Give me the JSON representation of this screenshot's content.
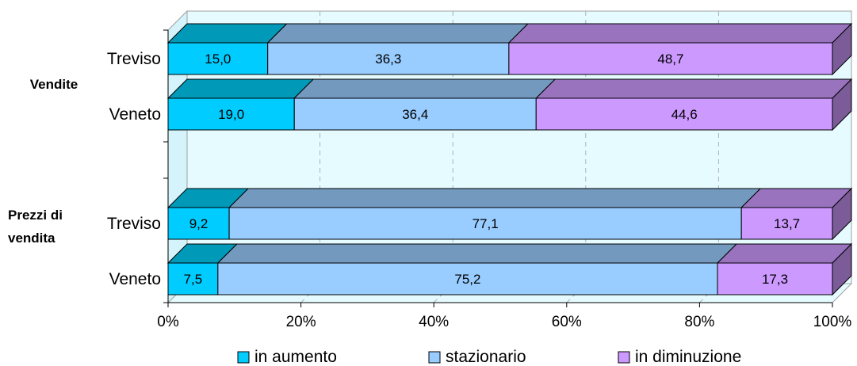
{
  "chart_data": {
    "type": "bar",
    "orientation": "horizontal",
    "stacked": "percent",
    "three_d": true,
    "groups": [
      {
        "label": "Vendite",
        "categories": [
          "Treviso",
          "Veneto"
        ]
      },
      {
        "label": "Prezzi di vendita",
        "categories": [
          "Treviso",
          "Veneto"
        ]
      }
    ],
    "series": [
      {
        "name": "in aumento",
        "values": [
          15.0,
          19.0,
          9.2,
          7.5
        ],
        "labels": [
          "15,0",
          "19,0",
          "9,2",
          "7,5"
        ]
      },
      {
        "name": "stazionario",
        "values": [
          36.3,
          36.4,
          77.1,
          75.2
        ],
        "labels": [
          "36,3",
          "36,4",
          "77,1",
          "75,2"
        ]
      },
      {
        "name": "in diminuzione",
        "values": [
          48.7,
          44.6,
          13.7,
          17.3
        ],
        "labels": [
          "48,7",
          "44,6",
          "13,7",
          "17,3"
        ]
      }
    ],
    "x_ticks": [
      "0%",
      "20%",
      "40%",
      "60%",
      "80%",
      "100%"
    ],
    "xlim": [
      0,
      100
    ],
    "grid": true,
    "legend_position": "bottom"
  },
  "colors": {
    "series_front": [
      "#00ccff",
      "#99ccff",
      "#cc99ff"
    ],
    "series_top": [
      "#0099b8",
      "#7399bf",
      "#9a73bf"
    ],
    "series_side": [
      "#007a94",
      "#5c7a99",
      "#7b5c99"
    ],
    "wall": "#e6fbff",
    "grid": "#b0b0b0",
    "axis": "#000000"
  }
}
